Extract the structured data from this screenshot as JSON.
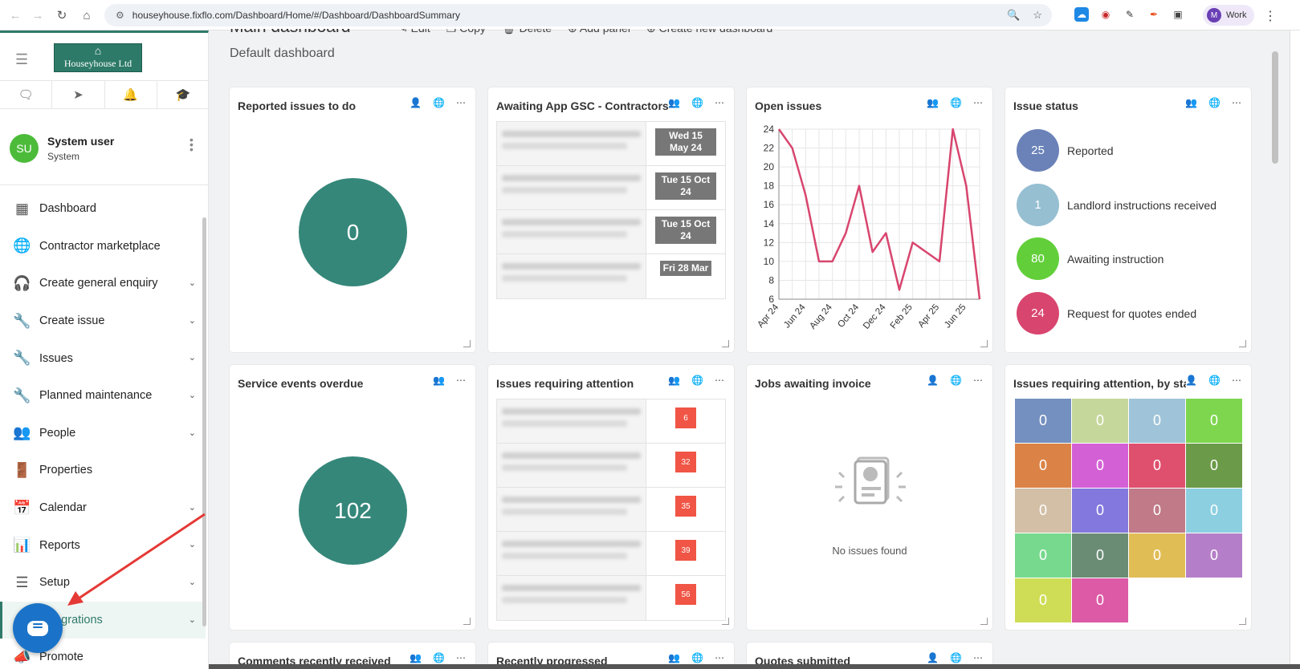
{
  "browser": {
    "url": "houseyhouse.fixflo.com/Dashboard/Home/#/Dashboard/DashboardSummary",
    "profile_initial": "M",
    "profile_label": "Work"
  },
  "sidebar": {
    "logo_text": "Houseyhouse Ltd",
    "user": {
      "initials": "SU",
      "name": "System user",
      "role": "System"
    },
    "items": [
      {
        "label": "Dashboard",
        "icon": "dashboard-icon",
        "chevron": false
      },
      {
        "label": "Contractor marketplace",
        "icon": "globe-icon",
        "chevron": false
      },
      {
        "label": "Create general enquiry",
        "icon": "headset-icon",
        "chevron": true
      },
      {
        "label": "Create issue",
        "icon": "wrench-plus-icon",
        "chevron": true
      },
      {
        "label": "Issues",
        "icon": "wrench-icon",
        "chevron": true
      },
      {
        "label": "Planned maintenance",
        "icon": "wrench-calendar-icon",
        "chevron": true
      },
      {
        "label": "People",
        "icon": "people-icon",
        "chevron": true
      },
      {
        "label": "Properties",
        "icon": "door-icon",
        "chevron": false
      },
      {
        "label": "Calendar",
        "icon": "calendar-icon",
        "chevron": true
      },
      {
        "label": "Reports",
        "icon": "reports-icon",
        "chevron": true
      },
      {
        "label": "Setup",
        "icon": "sliders-icon",
        "chevron": true
      },
      {
        "label": "Integrations",
        "icon": "integrations-icon",
        "chevron": true
      },
      {
        "label": "Promote",
        "icon": "promote-icon",
        "chevron": false
      }
    ]
  },
  "header": {
    "title": "Main dashboard",
    "subtitle": "Default dashboard",
    "toolbar": [
      "Edit",
      "Copy",
      "Delete",
      "Add panel",
      "Create new dashboard"
    ]
  },
  "cards": {
    "reported": {
      "title": "Reported issues to do",
      "value": "0"
    },
    "awaiting_app": {
      "title": "Awaiting App GSC - Contractors",
      "dates": [
        "Wed 15 May 24",
        "Tue 15 Oct 24",
        "Tue 15 Oct 24",
        "Fri 28 Mar"
      ]
    },
    "open_issues": {
      "title": "Open issues"
    },
    "issue_status": {
      "title": "Issue status",
      "rows": [
        {
          "value": "25",
          "label": "Reported",
          "color": "#6a82b8"
        },
        {
          "value": "1",
          "label": "Landlord instructions received",
          "color": "#96bfd2"
        },
        {
          "value": "80",
          "label": "Awaiting instruction",
          "color": "#62cf3a"
        },
        {
          "value": "24",
          "label": "Request for quotes ended",
          "color": "#d8456e"
        }
      ]
    },
    "service_overdue": {
      "title": "Service events overdue",
      "value": "102"
    },
    "requiring_attention": {
      "title": "Issues requiring attention",
      "counts": [
        "6",
        "32",
        "35",
        "39",
        "56"
      ]
    },
    "jobs_invoice": {
      "title": "Jobs awaiting invoice",
      "empty_text": "No issues found"
    },
    "by_status": {
      "title": "Issues requiring attention, by sta",
      "cells": [
        {
          "v": "0",
          "c": "#7490c0"
        },
        {
          "v": "0",
          "c": "#c6d79b"
        },
        {
          "v": "0",
          "c": "#9fc3d8"
        },
        {
          "v": "0",
          "c": "#7dd64e"
        },
        {
          "v": "0",
          "c": "#db8346"
        },
        {
          "v": "0",
          "c": "#d460d6"
        },
        {
          "v": "0",
          "c": "#df4f6e"
        },
        {
          "v": "0",
          "c": "#6b9a48"
        },
        {
          "v": "0",
          "c": "#d2bfa6"
        },
        {
          "v": "0",
          "c": "#8378dd"
        },
        {
          "v": "0",
          "c": "#c07a88"
        },
        {
          "v": "0",
          "c": "#8ccfe0"
        },
        {
          "v": "0",
          "c": "#77d98e"
        },
        {
          "v": "0",
          "c": "#6a8c74"
        },
        {
          "v": "0",
          "c": "#e1bd56"
        },
        {
          "v": "0",
          "c": "#b47fc8"
        },
        {
          "v": "0",
          "c": "#cedd55"
        },
        {
          "v": "0",
          "c": "#dc5aa6"
        }
      ]
    },
    "comments": {
      "title": "Comments recently received"
    },
    "progressed": {
      "title": "Recently progressed"
    },
    "quotes": {
      "title": "Quotes submitted"
    }
  },
  "chart_data": {
    "type": "line",
    "x": [
      "Apr 24",
      "May 24",
      "Jun 24",
      "Jul 24",
      "Aug 24",
      "Sep 24",
      "Oct 24",
      "Nov 24",
      "Dec 24",
      "Jan 25",
      "Feb 25",
      "Mar 25",
      "Apr 25",
      "May 25",
      "Jun 25",
      "Jul 25"
    ],
    "x_ticks": [
      "Apr 24",
      "Jun 24",
      "Aug 24",
      "Oct 24",
      "Dec 24",
      "Feb 25",
      "Apr 25",
      "Jun 25"
    ],
    "series": [
      {
        "values": [
          24,
          22,
          17,
          10,
          10,
          13,
          18,
          11,
          13,
          7,
          12,
          11,
          10,
          24,
          18,
          6
        ],
        "color": "#d8456e"
      }
    ],
    "ylim": [
      6,
      24
    ],
    "y_ticks": [
      6,
      8,
      10,
      12,
      14,
      16,
      18,
      20,
      22,
      24
    ],
    "grid": true
  }
}
